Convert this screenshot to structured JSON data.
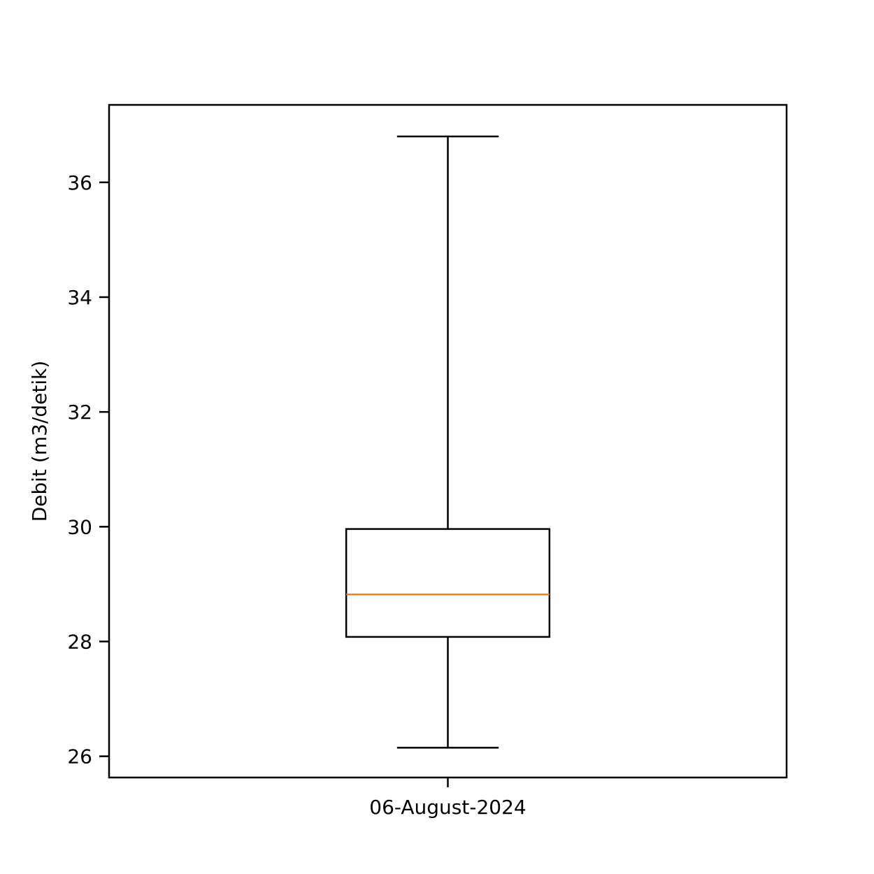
{
  "chart_data": {
    "type": "box",
    "title": "",
    "xlabel": "",
    "ylabel": "Debit (m3/detik)",
    "ylim": [
      25.63,
      37.35
    ],
    "yticks": [
      26,
      28,
      30,
      32,
      34,
      36
    ],
    "ytick_labels": [
      "26",
      "28",
      "30",
      "32",
      "34",
      "36"
    ],
    "grid": false,
    "categories": [
      "06-August-2024"
    ],
    "boxes": [
      {
        "category": "06-August-2024",
        "whisker_low": 26.15,
        "q1": 28.08,
        "median": 28.82,
        "q3": 29.96,
        "whisker_high": 36.8
      }
    ],
    "colors": {
      "box_edge": "#000000",
      "median": "#ff7f0e",
      "axes": "#000000"
    }
  }
}
